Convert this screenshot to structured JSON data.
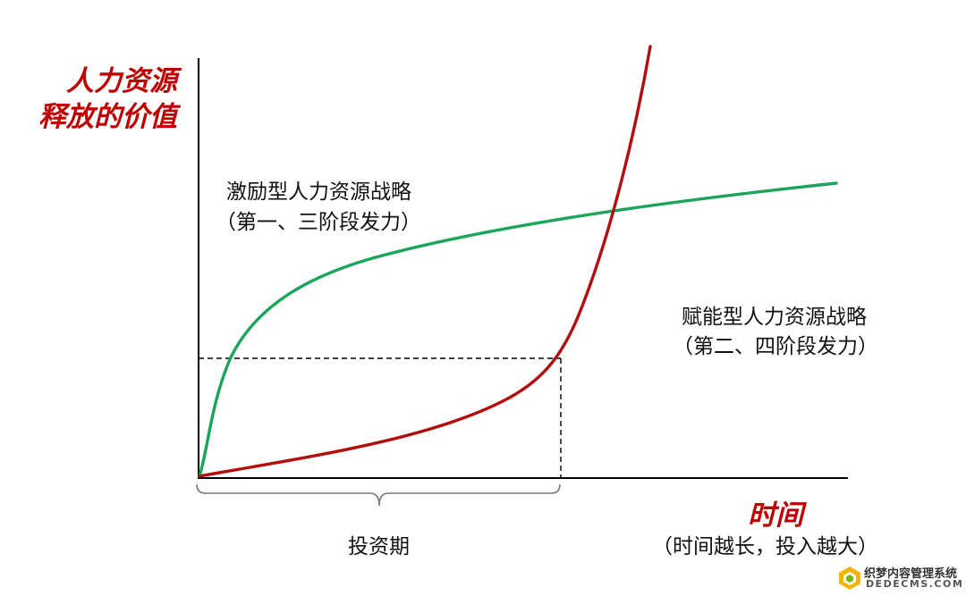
{
  "chart_data": {
    "type": "line",
    "title": "",
    "ylabel_lines": [
      "人力资源",
      "释放的价值"
    ],
    "xlabel": "时间",
    "xlabel_note": "（时间越长，投入越大）",
    "grid": false,
    "series": [
      {
        "name": "激励型人力资源战略",
        "name_note": "（第一、三阶段发力）",
        "color": "#1aa55a"
      },
      {
        "name": "赋能型人力资源战略",
        "name_note": "（第二、四阶段发力）",
        "color": "#b30d0d"
      }
    ],
    "annotations": {
      "invest_period_label": "投资期"
    }
  },
  "watermark": {
    "cn": "织梦内容管理系统",
    "en": "DEDECMS.COM"
  }
}
